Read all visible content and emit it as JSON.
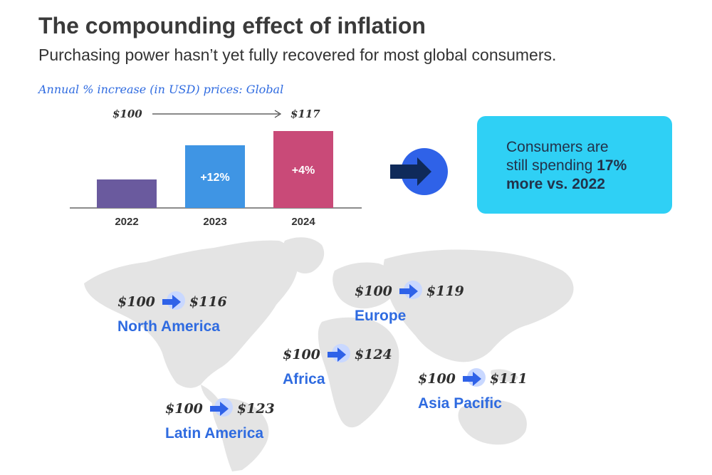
{
  "header": {
    "title": "The compounding effect of inflation",
    "subtitle": "Purchasing power hasn’t yet fully recovered for most global consumers.",
    "caption": "Annual % increase (in USD) prices: Global"
  },
  "price_path": {
    "start": "$100",
    "end": "$117"
  },
  "callout": {
    "line1": "Consumers are",
    "line2_prefix": "still spending ",
    "line2_bold": "17%",
    "line3": "more vs. 2022"
  },
  "chart_data": {
    "type": "bar",
    "title": "Annual % increase (in USD) prices: Global",
    "categories": [
      "2022",
      "2023",
      "2024"
    ],
    "values": [
      100,
      112,
      117
    ],
    "labels": [
      "",
      "+12%",
      "+4%"
    ],
    "colors": [
      "#6a5a9e",
      "#3f95e4",
      "#c94a78"
    ],
    "ylim": [
      90,
      118
    ],
    "xlabel": "",
    "ylabel": ""
  },
  "regions": [
    {
      "id": "north-america",
      "name": "North America",
      "from": "$100",
      "to": "$116"
    },
    {
      "id": "europe",
      "name": "Europe",
      "from": "$100",
      "to": "$119"
    },
    {
      "id": "africa",
      "name": "Africa",
      "from": "$100",
      "to": "$124"
    },
    {
      "id": "asia-pacific",
      "name": "Asia Pacific",
      "from": "$100",
      "to": "$111"
    },
    {
      "id": "latin-america",
      "name": "Latin America",
      "from": "$100",
      "to": "$123"
    }
  ],
  "colors": {
    "accent": "#2f6be0",
    "callout_bg": "#2fd0f5",
    "map": "#e3e3e3",
    "arrow_dark": "#0f2a5a"
  }
}
